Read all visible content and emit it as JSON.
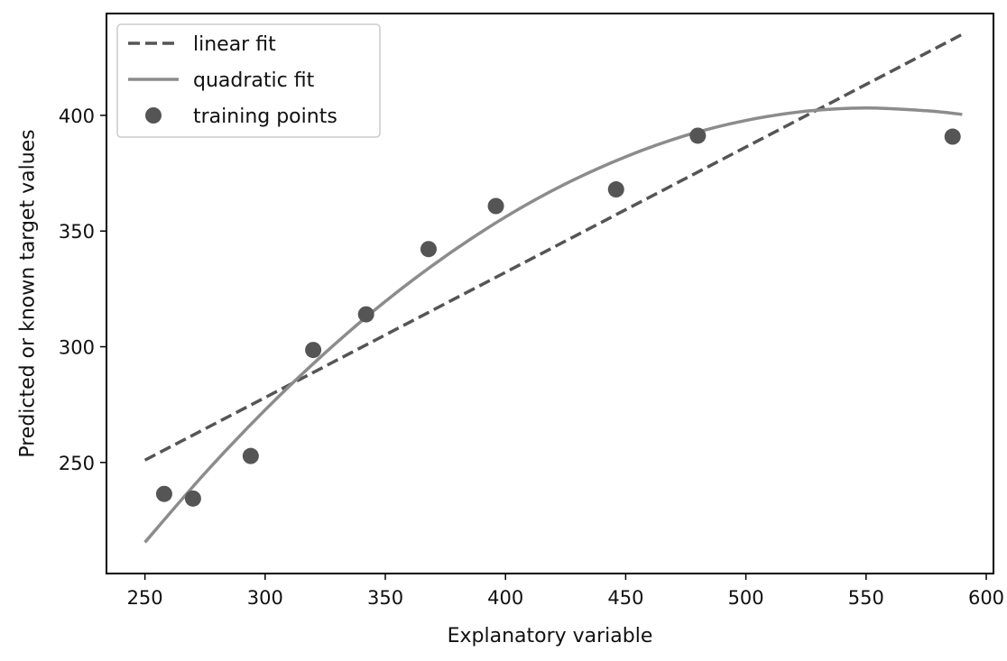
{
  "chart_data": {
    "type": "scatter",
    "title": "",
    "xlabel": "Explanatory variable",
    "ylabel": "Predicted or known target values",
    "xlim": [
      234,
      603
    ],
    "ylim": [
      202,
      444
    ],
    "xticks": [
      250,
      300,
      350,
      400,
      450,
      500,
      550,
      600
    ],
    "yticks": [
      250,
      300,
      350,
      400
    ],
    "grid": false,
    "legend_position": "top-left",
    "colors": {
      "points": "#555555",
      "linear": "#555555",
      "quadratic": "#8c8c8c",
      "axes": "#000000"
    },
    "series": [
      {
        "name": "linear fit",
        "kind": "line",
        "style": "dashed",
        "x": [
          250,
          590
        ],
        "y": [
          251,
          435
        ]
      },
      {
        "name": "quadratic fit",
        "kind": "line",
        "style": "solid",
        "x": [
          250,
          275,
          300,
          325,
          350,
          375,
          400,
          425,
          450,
          475,
          500,
          525,
          550,
          575,
          590
        ],
        "y": [
          215.5,
          245.4,
          272.7,
          297.4,
          319.6,
          339.1,
          356.1,
          370.4,
          382.1,
          391.3,
          397.8,
          401.8,
          403.2,
          402.0,
          400.4
        ]
      },
      {
        "name": "training points",
        "kind": "scatter",
        "x": [
          258,
          270,
          294,
          320,
          342,
          368,
          396,
          446,
          480,
          586
        ],
        "y": [
          236.4,
          234.4,
          252.8,
          298.6,
          314.0,
          342.2,
          360.8,
          368.0,
          391.2,
          390.8
        ]
      }
    ]
  }
}
